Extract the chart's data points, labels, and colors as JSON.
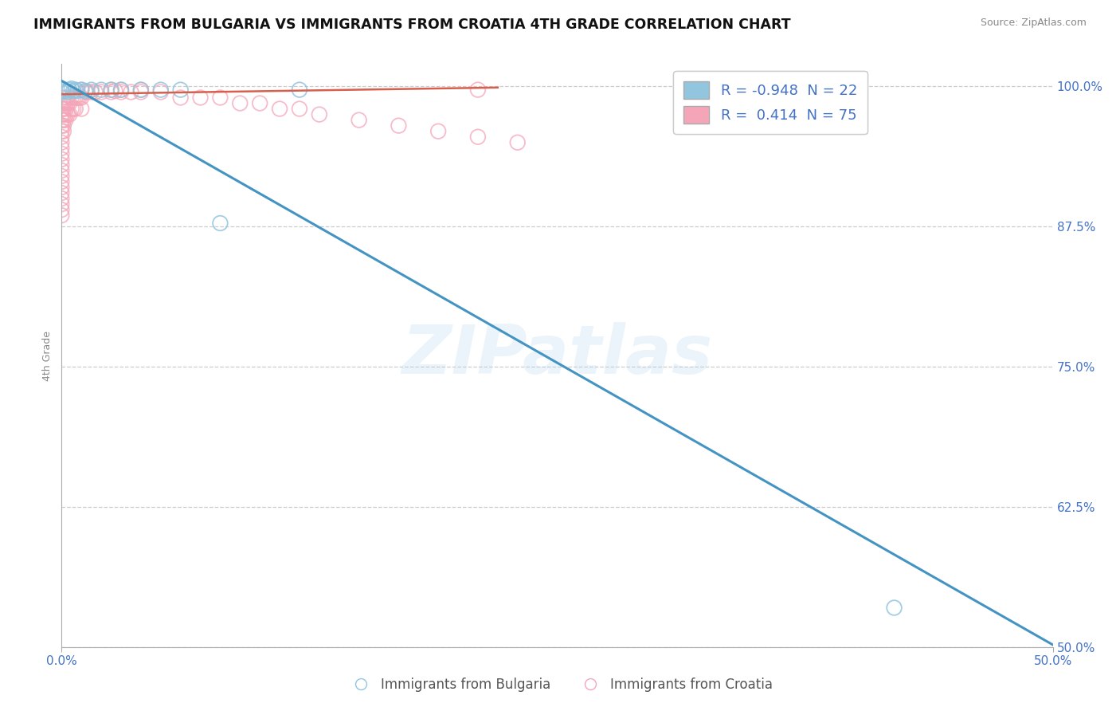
{
  "title": "IMMIGRANTS FROM BULGARIA VS IMMIGRANTS FROM CROATIA 4TH GRADE CORRELATION CHART",
  "source": "Source: ZipAtlas.com",
  "ylabel": "4th Grade",
  "legend_label_blue": "Immigrants from Bulgaria",
  "legend_label_pink": "Immigrants from Croatia",
  "R_blue": -0.948,
  "N_blue": 22,
  "R_pink": 0.414,
  "N_pink": 75,
  "xlim": [
    0.0,
    0.5
  ],
  "ylim": [
    0.5,
    1.02
  ],
  "ytick_labels": [
    "50.0%",
    "62.5%",
    "75.0%",
    "87.5%",
    "100.0%"
  ],
  "ytick_values": [
    0.5,
    0.625,
    0.75,
    0.875,
    1.0
  ],
  "color_blue": "#92c5de",
  "color_pink": "#f4a6b8",
  "color_line_blue": "#4393c3",
  "color_line_pink": "#d6604d",
  "watermark": "ZIPatlas",
  "watermark_color": "#b8d8f0",
  "blue_line_x0": 0.0,
  "blue_line_y0": 1.005,
  "blue_line_x1": 0.5,
  "blue_line_y1": 0.502,
  "pink_line_x0": 0.0,
  "pink_line_y0": 0.993,
  "pink_line_x1": 0.22,
  "pink_line_y1": 0.999,
  "blue_scatter_x": [
    0.0,
    0.0,
    0.001,
    0.002,
    0.003,
    0.004,
    0.005,
    0.006,
    0.007,
    0.008,
    0.01,
    0.012,
    0.015,
    0.02,
    0.025,
    0.03,
    0.04,
    0.05,
    0.06,
    0.08,
    0.12,
    0.42
  ],
  "blue_scatter_y": [
    0.998,
    0.995,
    0.997,
    0.996,
    0.995,
    0.997,
    0.998,
    0.996,
    0.997,
    0.996,
    0.997,
    0.996,
    0.997,
    0.997,
    0.997,
    0.997,
    0.997,
    0.997,
    0.997,
    0.878,
    0.997,
    0.535
  ],
  "pink_scatter_x": [
    0.0,
    0.0,
    0.0,
    0.0,
    0.0,
    0.0,
    0.0,
    0.0,
    0.0,
    0.0,
    0.0,
    0.0,
    0.0,
    0.0,
    0.0,
    0.0,
    0.0,
    0.0,
    0.0,
    0.0,
    0.001,
    0.001,
    0.001,
    0.001,
    0.001,
    0.001,
    0.001,
    0.002,
    0.002,
    0.002,
    0.002,
    0.003,
    0.003,
    0.003,
    0.004,
    0.004,
    0.005,
    0.005,
    0.006,
    0.006,
    0.007,
    0.007,
    0.008,
    0.009,
    0.01,
    0.01,
    0.01,
    0.012,
    0.013,
    0.015,
    0.017,
    0.02,
    0.025,
    0.03,
    0.035,
    0.04,
    0.05,
    0.06,
    0.07,
    0.08,
    0.09,
    0.1,
    0.11,
    0.12,
    0.13,
    0.15,
    0.17,
    0.19,
    0.21,
    0.23,
    0.025,
    0.027,
    0.03,
    0.04,
    0.21
  ],
  "pink_scatter_y": [
    0.98,
    0.975,
    0.97,
    0.965,
    0.96,
    0.955,
    0.95,
    0.945,
    0.94,
    0.935,
    0.93,
    0.925,
    0.92,
    0.915,
    0.91,
    0.905,
    0.9,
    0.895,
    0.89,
    0.885,
    0.99,
    0.985,
    0.98,
    0.975,
    0.97,
    0.965,
    0.96,
    0.985,
    0.98,
    0.975,
    0.97,
    0.99,
    0.985,
    0.975,
    0.985,
    0.975,
    0.99,
    0.98,
    0.99,
    0.98,
    0.99,
    0.98,
    0.99,
    0.99,
    0.997,
    0.99,
    0.98,
    0.995,
    0.995,
    0.995,
    0.995,
    0.995,
    0.995,
    0.995,
    0.995,
    0.995,
    0.995,
    0.99,
    0.99,
    0.99,
    0.985,
    0.985,
    0.98,
    0.98,
    0.975,
    0.97,
    0.965,
    0.96,
    0.955,
    0.95,
    0.997,
    0.996,
    0.997,
    0.997,
    0.997
  ]
}
